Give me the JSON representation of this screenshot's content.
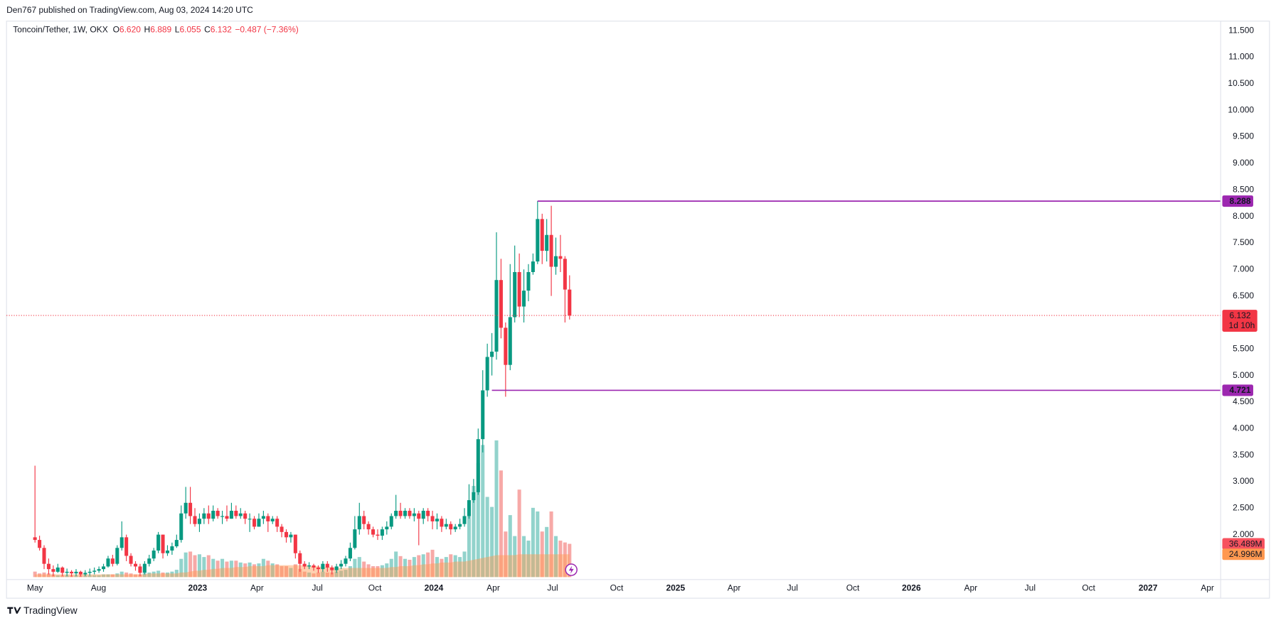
{
  "page": {
    "published": "Den767 published on TradingView.com, Aug 03, 2024 14:20 UTC",
    "brand": "TradingView"
  },
  "header": {
    "symbol": "Toncoin/Tether, 1W, OKX",
    "ohlc": [
      {
        "key": "O",
        "value": "6.620"
      },
      {
        "key": "H",
        "value": "6.889"
      },
      {
        "key": "L",
        "value": "6.055"
      },
      {
        "key": "C",
        "value": "6.132"
      }
    ],
    "change": "−0.487 (−7.36%)"
  },
  "chart_data": {
    "type": "candlestick",
    "up_color": "#089981",
    "down_color": "#f23645",
    "volume_up_color": "#92d3cc",
    "volume_down_color": "#f7a9a7",
    "volume_ma_color": "#ff9850",
    "level_color": "#9c27b0",
    "grid": true,
    "x": [
      0,
      1,
      2,
      3,
      4,
      5,
      6,
      7,
      8,
      9,
      10,
      11,
      12,
      13,
      14,
      15,
      16,
      17,
      18,
      19,
      20,
      21,
      22,
      23,
      24,
      25,
      26,
      27,
      28,
      29,
      30,
      31,
      32,
      33,
      34,
      35,
      36,
      37,
      38,
      39,
      40,
      41,
      42,
      43,
      44,
      45,
      46,
      47,
      48,
      49,
      50,
      51,
      52,
      53,
      54,
      55,
      56,
      57,
      58,
      59,
      60,
      61,
      62,
      63,
      64,
      65,
      66,
      67,
      68,
      69,
      70,
      71,
      72,
      73,
      74,
      75,
      76,
      77,
      78,
      79,
      80,
      81,
      82,
      83,
      84,
      85,
      86,
      87,
      88,
      89,
      90,
      91,
      92,
      93,
      94,
      95,
      96,
      97,
      98,
      99,
      100,
      101,
      102,
      103,
      104,
      105,
      106,
      107,
      108,
      109,
      110,
      111,
      112,
      113,
      114,
      115,
      116,
      117
    ],
    "open": [
      1.95,
      1.9,
      1.75,
      1.45,
      1.35,
      1.3,
      1.38,
      1.28,
      1.3,
      1.27,
      1.3,
      1.25,
      1.28,
      1.3,
      1.32,
      1.35,
      1.4,
      1.55,
      1.45,
      1.75,
      1.95,
      1.6,
      1.45,
      1.4,
      1.28,
      1.45,
      1.55,
      1.7,
      2.0,
      1.65,
      1.7,
      1.78,
      1.9,
      2.4,
      2.6,
      2.35,
      2.2,
      2.3,
      2.4,
      2.3,
      2.45,
      2.35,
      2.35,
      2.3,
      2.45,
      2.35,
      2.4,
      2.3,
      2.3,
      2.15,
      2.3,
      2.35,
      2.25,
      2.3,
      2.15,
      2.05,
      1.95,
      2.0,
      1.65,
      1.45,
      1.4,
      1.42,
      1.38,
      1.35,
      1.45,
      1.38,
      1.33,
      1.4,
      1.45,
      1.55,
      1.75,
      2.1,
      2.35,
      2.2,
      2.1,
      2.0,
      1.98,
      2.1,
      2.15,
      2.35,
      2.45,
      2.35,
      2.45,
      2.35,
      2.4,
      2.3,
      2.45,
      2.35,
      2.25,
      2.3,
      2.15,
      2.2,
      2.1,
      2.15,
      2.2,
      2.35,
      2.65,
      2.8,
      3.8,
      4.72,
      5.35,
      5.45,
      6.8,
      5.9,
      5.2,
      6.1,
      6.95,
      6.3,
      6.6,
      6.95,
      7.15,
      7.95,
      7.35,
      7.65,
      7.05,
      7.25,
      7.2,
      6.62
    ],
    "high": [
      3.3,
      1.98,
      1.8,
      1.55,
      1.42,
      1.45,
      1.4,
      1.36,
      1.33,
      1.35,
      1.32,
      1.33,
      1.36,
      1.38,
      1.4,
      1.45,
      1.6,
      1.62,
      1.8,
      2.25,
      2.0,
      1.65,
      1.5,
      1.45,
      1.5,
      1.62,
      1.75,
      2.05,
      2.0,
      1.8,
      1.85,
      2.0,
      2.55,
      2.9,
      2.9,
      2.5,
      2.4,
      2.5,
      2.55,
      2.55,
      2.5,
      2.45,
      2.55,
      2.6,
      2.55,
      2.5,
      2.45,
      2.4,
      2.35,
      2.4,
      2.45,
      2.4,
      2.35,
      2.35,
      2.2,
      2.1,
      2.05,
      2.0,
      1.7,
      1.5,
      1.48,
      1.45,
      1.42,
      1.5,
      1.5,
      1.42,
      1.45,
      1.52,
      1.6,
      1.85,
      2.35,
      2.6,
      2.45,
      2.25,
      2.15,
      2.1,
      2.15,
      2.25,
      2.4,
      2.75,
      2.6,
      2.5,
      2.5,
      2.5,
      2.45,
      2.5,
      2.5,
      2.45,
      2.4,
      2.35,
      2.3,
      2.25,
      2.2,
      2.3,
      2.5,
      2.95,
      3.05,
      4.0,
      5.1,
      5.6,
      5.8,
      7.7,
      7.2,
      6.0,
      7.1,
      7.45,
      7.3,
      7.0,
      7.1,
      7.3,
      8.29,
      8.05,
      7.95,
      8.2,
      7.6,
      7.65,
      7.25,
      6.889
    ],
    "low": [
      1.85,
      1.7,
      1.35,
      1.25,
      1.22,
      1.28,
      1.22,
      1.22,
      1.21,
      1.22,
      1.21,
      1.22,
      1.23,
      1.25,
      1.28,
      1.3,
      1.38,
      1.4,
      1.42,
      1.7,
      1.5,
      1.4,
      1.32,
      1.22,
      1.25,
      1.4,
      1.5,
      1.65,
      1.55,
      1.6,
      1.62,
      1.75,
      1.85,
      2.3,
      2.2,
      2.15,
      2.05,
      2.2,
      2.2,
      2.25,
      2.3,
      2.2,
      2.25,
      2.3,
      2.3,
      2.3,
      2.2,
      2.05,
      2.1,
      2.15,
      2.2,
      2.05,
      2.2,
      2.05,
      1.95,
      1.85,
      1.85,
      1.55,
      1.3,
      1.35,
      1.35,
      1.32,
      1.28,
      1.3,
      1.3,
      1.25,
      1.28,
      1.35,
      1.4,
      1.5,
      1.72,
      2.0,
      2.1,
      2.0,
      1.95,
      1.9,
      1.9,
      2.0,
      2.1,
      2.3,
      2.3,
      2.3,
      2.3,
      2.25,
      1.8,
      2.2,
      2.25,
      2.1,
      2.1,
      2.05,
      2.1,
      2.0,
      2.05,
      2.1,
      2.15,
      2.3,
      2.6,
      2.75,
      3.55,
      4.6,
      5.0,
      5.3,
      5.7,
      4.6,
      5.1,
      6.0,
      6.1,
      6.0,
      6.4,
      6.9,
      7.1,
      7.1,
      7.15,
      6.5,
      6.9,
      6.95,
      6.0,
      6.055
    ],
    "close": [
      1.9,
      1.75,
      1.45,
      1.35,
      1.3,
      1.38,
      1.28,
      1.3,
      1.27,
      1.3,
      1.25,
      1.28,
      1.3,
      1.32,
      1.35,
      1.4,
      1.55,
      1.45,
      1.75,
      1.95,
      1.6,
      1.45,
      1.4,
      1.28,
      1.45,
      1.55,
      1.7,
      2.0,
      1.65,
      1.7,
      1.78,
      1.9,
      2.4,
      2.6,
      2.35,
      2.2,
      2.3,
      2.4,
      2.3,
      2.45,
      2.35,
      2.35,
      2.3,
      2.45,
      2.35,
      2.4,
      2.3,
      2.3,
      2.15,
      2.3,
      2.35,
      2.25,
      2.3,
      2.15,
      2.05,
      1.95,
      2.0,
      1.65,
      1.45,
      1.4,
      1.42,
      1.38,
      1.35,
      1.45,
      1.38,
      1.33,
      1.4,
      1.45,
      1.55,
      1.75,
      2.1,
      2.35,
      2.2,
      2.1,
      2.0,
      1.98,
      2.1,
      2.15,
      2.35,
      2.45,
      2.35,
      2.45,
      2.35,
      2.4,
      2.3,
      2.45,
      2.35,
      2.25,
      2.3,
      2.15,
      2.2,
      2.1,
      2.15,
      2.2,
      2.35,
      2.65,
      2.8,
      3.8,
      4.72,
      5.35,
      5.45,
      6.8,
      5.9,
      5.2,
      6.1,
      6.95,
      6.3,
      6.6,
      6.95,
      7.15,
      7.95,
      7.35,
      7.65,
      7.05,
      7.25,
      7.2,
      6.62,
      6.132
    ],
    "volume": [
      6,
      4,
      5,
      4,
      3,
      2,
      2,
      2,
      2,
      2,
      2,
      2,
      2,
      2,
      2,
      3,
      3,
      3,
      4,
      6,
      5,
      4,
      3,
      3,
      4,
      5,
      6,
      7,
      5,
      5,
      6,
      8,
      20,
      27,
      28,
      24,
      25,
      22,
      24,
      20,
      18,
      20,
      17,
      18,
      18,
      16,
      15,
      16,
      14,
      15,
      20,
      18,
      15,
      14,
      12,
      12,
      10,
      14,
      9,
      6,
      5,
      4,
      5,
      6,
      5,
      5,
      6,
      7,
      8,
      12,
      20,
      22,
      17,
      14,
      12,
      12,
      13,
      15,
      20,
      28,
      23,
      20,
      19,
      22,
      24,
      25,
      27,
      30,
      22,
      20,
      22,
      25,
      24,
      22,
      28,
      80,
      100,
      125,
      145,
      88,
      77,
      150,
      117,
      50,
      68,
      45,
      96,
      45,
      40,
      76,
      72,
      50,
      55,
      72,
      45,
      40,
      38,
      36.489
    ],
    "volume_ma": [
      3,
      3,
      3,
      3,
      3,
      3,
      3,
      3,
      3,
      3,
      3,
      3,
      3,
      3,
      3,
      3,
      3,
      3,
      3,
      3,
      3,
      3,
      3,
      3,
      3,
      4,
      4,
      4,
      4,
      4,
      4,
      4,
      5,
      5,
      6,
      7,
      7,
      8,
      8,
      9,
      9,
      10,
      10,
      10,
      11,
      11,
      11,
      12,
      12,
      12,
      12,
      13,
      13,
      13,
      13,
      13,
      13,
      13,
      13,
      13,
      12,
      12,
      12,
      11,
      11,
      11,
      10,
      10,
      10,
      10,
      10,
      10,
      10,
      10,
      10,
      10,
      10,
      10,
      11,
      11,
      12,
      12,
      12,
      13,
      13,
      14,
      14,
      15,
      15,
      16,
      16,
      16,
      17,
      17,
      17,
      18,
      19,
      20,
      21,
      22,
      23,
      24,
      24,
      24,
      24,
      24,
      25,
      25,
      25,
      25,
      25,
      25,
      25,
      25,
      25,
      25,
      25,
      24.996
    ],
    "volume_tag": "36.489M",
    "volume_ma_tag": "24.996M",
    "xlim": [
      -6.23,
      259.5
    ],
    "ylim": [
      1.2,
      11.65
    ],
    "y2lim": [
      0,
      190
    ],
    "xticks": [
      {
        "value": 0,
        "label": "May"
      },
      {
        "value": 13.9,
        "label": "Aug"
      },
      {
        "value": 35.6,
        "label": "2023"
      },
      {
        "value": 48.6,
        "label": "Apr"
      },
      {
        "value": 61.8,
        "label": "Jul"
      },
      {
        "value": 74.4,
        "label": "Oct"
      },
      {
        "value": 87.3,
        "label": "2024"
      },
      {
        "value": 100.3,
        "label": "Apr"
      },
      {
        "value": 113.3,
        "label": "Jul"
      },
      {
        "value": 127.3,
        "label": "Oct"
      },
      {
        "value": 140.2,
        "label": "2025"
      },
      {
        "value": 153.0,
        "label": "Apr"
      },
      {
        "value": 165.8,
        "label": "Jul"
      },
      {
        "value": 179.0,
        "label": "Oct"
      },
      {
        "value": 191.8,
        "label": "2026"
      },
      {
        "value": 204.8,
        "label": "Apr"
      },
      {
        "value": 217.8,
        "label": "Jul"
      },
      {
        "value": 230.6,
        "label": "Oct"
      },
      {
        "value": 243.6,
        "label": "2027"
      },
      {
        "value": 256.6,
        "label": "Apr"
      }
    ],
    "yticks": [
      {
        "value": 2,
        "label": "2.000"
      },
      {
        "value": 2.5,
        "label": "2.500"
      },
      {
        "value": 3,
        "label": "3.000"
      },
      {
        "value": 3.5,
        "label": "3.500"
      },
      {
        "value": 4,
        "label": "4.000"
      },
      {
        "value": 4.5,
        "label": "4.500"
      },
      {
        "value": 5,
        "label": "5.000"
      },
      {
        "value": 5.5,
        "label": "5.500"
      },
      {
        "value": 6,
        "label": "6.000"
      },
      {
        "value": 6.5,
        "label": "6.500"
      },
      {
        "value": 7,
        "label": "7.000"
      },
      {
        "value": 7.5,
        "label": "7.500"
      },
      {
        "value": 8,
        "label": "8.000"
      },
      {
        "value": 8.5,
        "label": "8.500"
      },
      {
        "value": 9,
        "label": "9.000"
      },
      {
        "value": 9.5,
        "label": "9.500"
      },
      {
        "value": 10,
        "label": "10.000"
      },
      {
        "value": 10.5,
        "label": "10.500"
      },
      {
        "value": 11,
        "label": "11.000"
      },
      {
        "value": 11.5,
        "label": "11.500"
      }
    ],
    "levels": [
      {
        "value": 8.288,
        "from": 110
      },
      {
        "value": 4.721,
        "from": 100
      }
    ],
    "last_price": {
      "value": 6.132,
      "countdown": "1d 10h"
    }
  }
}
